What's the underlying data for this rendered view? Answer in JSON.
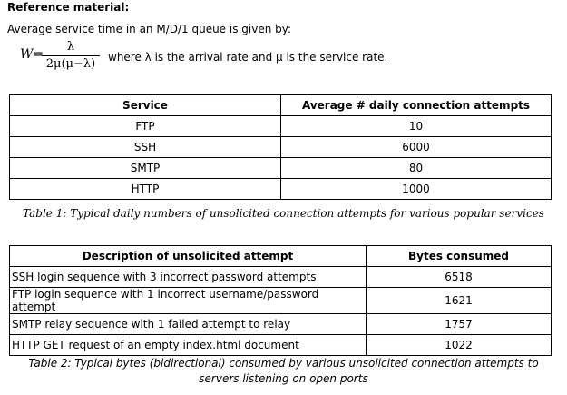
{
  "heading": "Reference material:",
  "intro": "Average service time in an M/D/1 queue is given by:",
  "formula": {
    "lhs": "W=",
    "numerator": "λ",
    "denominator": "2μ(μ−λ)",
    "note": "where λ is the arrival rate and μ is the service rate."
  },
  "table1": {
    "header": [
      "Service",
      "Average # daily connection attempts"
    ],
    "rows": [
      [
        "FTP",
        10
      ],
      [
        "SSH",
        6000
      ],
      [
        "SMTP",
        80
      ],
      [
        "HTTP",
        1000
      ]
    ],
    "caption": "Table 1: Typical daily numbers of unsolicited connection attempts for various popular services"
  },
  "table2": {
    "header": [
      "Description of unsolicited attempt",
      "Bytes consumed"
    ],
    "rows": [
      [
        "SSH login sequence with 3 incorrect password attempts",
        6518
      ],
      [
        "FTP login sequence with 1 incorrect username/password attempt",
        1621
      ],
      [
        "SMTP relay sequence with 1 failed attempt to relay",
        1757
      ],
      [
        "HTTP GET request of an empty index.html document",
        1022
      ]
    ],
    "caption": "Table 2: Typical bytes (bidirectional) consumed by various unsolicited connection attempts to servers listening on open ports"
  }
}
